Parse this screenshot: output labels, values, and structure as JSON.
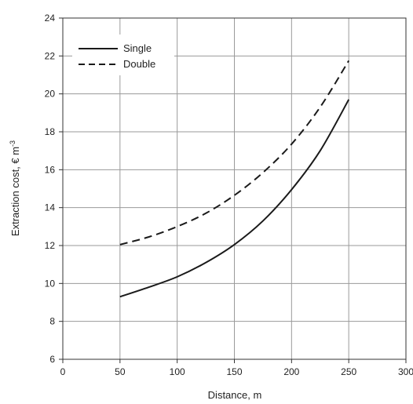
{
  "chart_data": {
    "type": "line",
    "xlabel": "Distance, m",
    "ylabel": "Extraction cost, € m",
    "ylabel_superscript": "-3",
    "xlim": [
      0,
      300
    ],
    "ylim": [
      6,
      24
    ],
    "xticks": [
      "0",
      "50",
      "100",
      "150",
      "200",
      "250",
      "300"
    ],
    "yticks": [
      "6",
      "8",
      "10",
      "12",
      "14",
      "16",
      "18",
      "20",
      "22",
      "24"
    ],
    "grid": true,
    "legend_position": "top-left",
    "series": [
      {
        "name": "Single",
        "style": "solid",
        "color": "#1a1a1a",
        "x": [
          50,
          75,
          100,
          125,
          150,
          175,
          200,
          225,
          250
        ],
        "y": [
          9.3,
          9.8,
          10.35,
          11.1,
          12.05,
          13.3,
          14.95,
          17.0,
          19.7
        ]
      },
      {
        "name": "Double",
        "style": "dashed",
        "color": "#1a1a1a",
        "x": [
          50,
          75,
          100,
          125,
          150,
          175,
          200,
          225,
          250
        ],
        "y": [
          12.05,
          12.45,
          13.0,
          13.7,
          14.65,
          15.85,
          17.35,
          19.3,
          21.75
        ]
      }
    ]
  }
}
